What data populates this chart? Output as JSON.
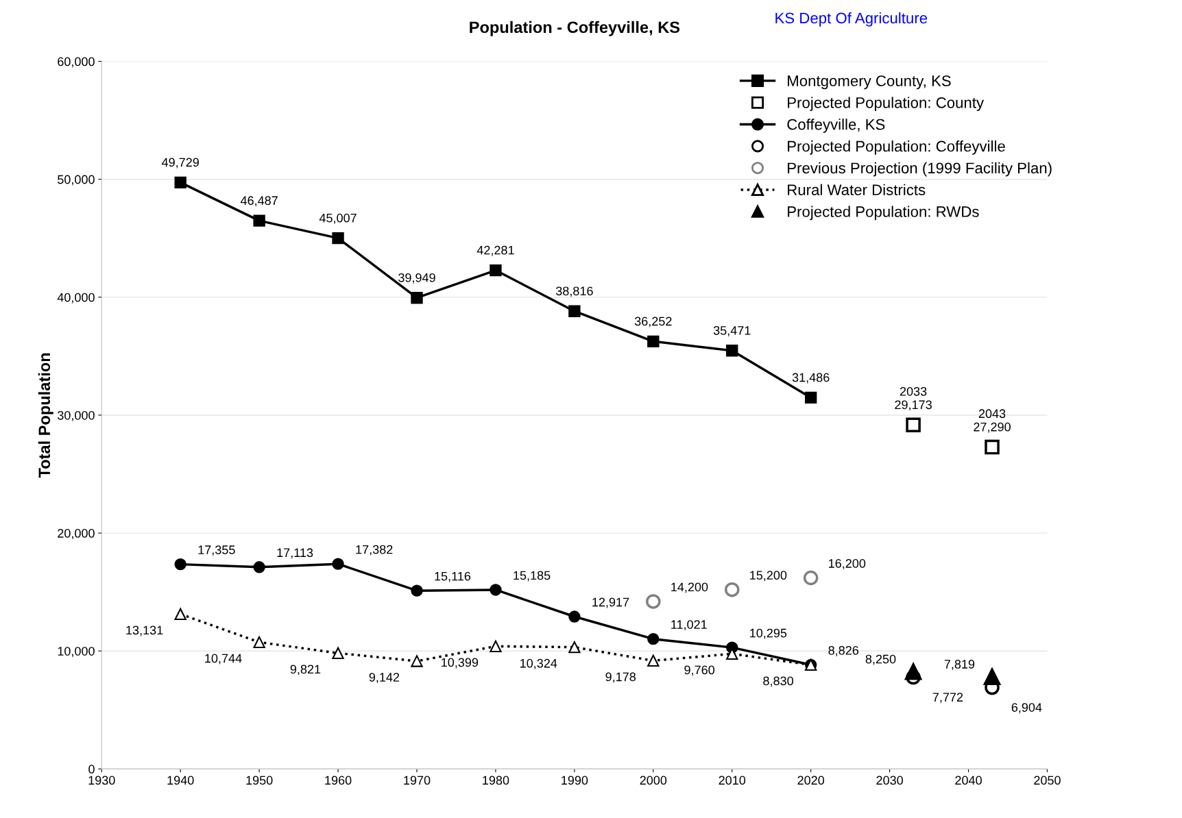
{
  "chart_data": {
    "type": "line",
    "title": "Population - Coffeyville, KS",
    "ylabel": "Total Population",
    "annotations": [
      "KS Dept Of Agriculture"
    ],
    "xlim": [
      1930,
      2050
    ],
    "xticks": [
      1930,
      1940,
      1950,
      1960,
      1970,
      1980,
      1990,
      2000,
      2010,
      2020,
      2030,
      2040,
      2050
    ],
    "ylim": [
      0,
      60000
    ],
    "yticks": [
      {
        "value": 0,
        "label": "0"
      },
      {
        "value": 10000,
        "label": "10,000"
      },
      {
        "value": 20000,
        "label": "20,000"
      },
      {
        "value": 30000,
        "label": "30,000"
      },
      {
        "value": 40000,
        "label": "40,000"
      },
      {
        "value": 50000,
        "label": "50,000"
      },
      {
        "value": 60000,
        "label": "60,000"
      }
    ],
    "grid": "y",
    "legend": "top right",
    "series": [
      {
        "name": "Montgomery County, KS",
        "marker": "square",
        "line_style": "solid",
        "color": "#000000",
        "x": [
          1940,
          1950,
          1960,
          1970,
          1980,
          1990,
          2000,
          2010,
          2020
        ],
        "values": [
          49729,
          46487,
          45007,
          39949,
          42281,
          38816,
          36252,
          35471,
          31486
        ],
        "value_labels": [
          "49,729",
          "46,487",
          "45,007",
          "39,949",
          "42,281",
          "38,816",
          "36,252",
          "35,471",
          "31,486"
        ]
      },
      {
        "name": "Projected Population: County",
        "type": "scatter",
        "marker": "square",
        "color": "#000000",
        "x": [
          2033,
          2043
        ],
        "values": [
          29173,
          27290
        ],
        "value_labels": [
          "2033\n29,173",
          "2043\n27,290"
        ]
      },
      {
        "name": "Coffeyville, KS",
        "marker": "circle",
        "line_style": "solid",
        "color": "#000000",
        "x": [
          1940,
          1950,
          1960,
          1970,
          1980,
          1990,
          2000,
          2010,
          2020
        ],
        "values": [
          17355,
          17113,
          17382,
          15116,
          15185,
          12917,
          11021,
          10295,
          8826
        ],
        "value_labels": [
          "17,355",
          "17,113",
          "17,382",
          "15,116",
          "15,185",
          "12,917",
          "11,021",
          "10,295",
          "8,826"
        ]
      },
      {
        "name": "Projected Population: Coffeyville",
        "type": "scatter",
        "marker": "circle",
        "color": "#000000",
        "x": [
          2033,
          2043
        ],
        "values": [
          7772,
          6904
        ],
        "value_labels": [
          "7,772",
          "6,904"
        ]
      },
      {
        "name": "Previous Projection (1999 Facility Plan)",
        "type": "scatter",
        "marker": "circle",
        "color": "#808080",
        "x": [
          2000,
          2010,
          2020
        ],
        "values": [
          14200,
          15200,
          16200
        ],
        "value_labels": [
          "14,200",
          "15,200",
          "16,200"
        ]
      },
      {
        "name": "Rural Water Districts",
        "marker": "triangle",
        "line_style": "dotted",
        "color": "#000000",
        "x": [
          1940,
          1950,
          1960,
          1970,
          1980,
          1990,
          2000,
          2010,
          2020
        ],
        "values": [
          13131,
          10744,
          9821,
          9142,
          10399,
          10324,
          9178,
          9760,
          8830
        ],
        "value_labels": [
          "13,131",
          "10,744",
          "9,821",
          "9,142",
          "10,399",
          "10,324",
          "9,178",
          "9,760",
          "8,830"
        ]
      },
      {
        "name": "Projected Population: RWDs",
        "type": "scatter",
        "marker": "triangle",
        "color": "#000000",
        "x": [
          2033,
          2043
        ],
        "values": [
          8250,
          7819
        ],
        "value_labels": [
          "8,250",
          "7,819"
        ]
      }
    ]
  }
}
